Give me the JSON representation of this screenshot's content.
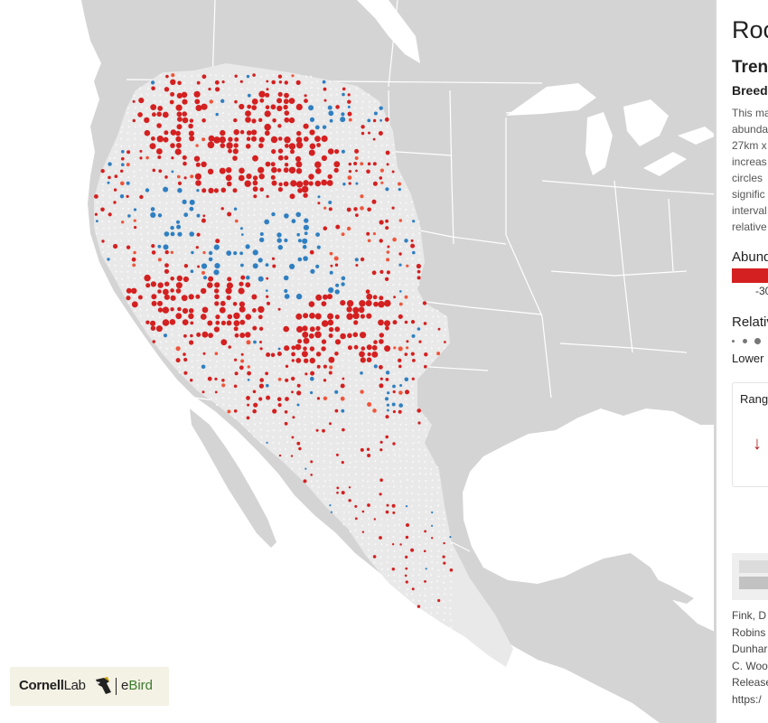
{
  "panel": {
    "species_title": "Roc",
    "trend_title": "Tren",
    "season_label": "Breed",
    "description_lines": [
      "This ma",
      "abunda",
      "27km x",
      "increas",
      "circles",
      "signific",
      "interval",
      "relative"
    ],
    "abundance_label": "Abund",
    "abundance_tick": "-30",
    "relative_label": "Relativ",
    "relative_lower": "Lower",
    "range_card_label": "Range",
    "range_card_arrow": "↓",
    "citation_lines": [
      "Fink, D",
      "Robins",
      "Dunhar",
      "C. Woo",
      "Release",
      "https:/"
    ]
  },
  "logo": {
    "cornell_bold": "Cornell",
    "cornell_light": "Lab",
    "ebird_prefix": "e",
    "ebird_suffix": "Bird",
    "bird-icon": "woodpecker-icon"
  },
  "colors": {
    "ocean": "#ffffff",
    "land": "#d4d4d4",
    "range": "#e9e9e9",
    "border": "#ffffff",
    "decline": "#d42020",
    "increase": "#2f7fc1",
    "moderate_decline": "#f0553a",
    "neutral_dot": "#f7f7f7"
  }
}
